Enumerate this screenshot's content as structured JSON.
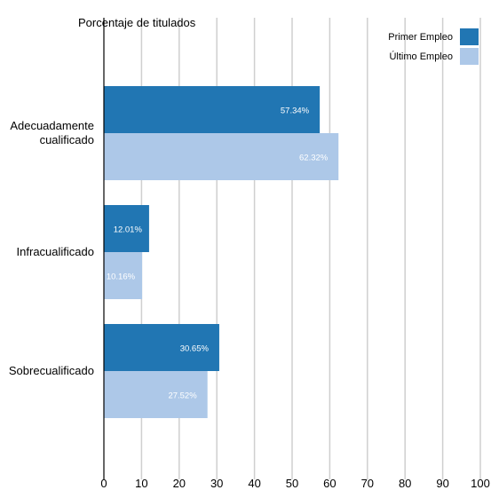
{
  "chart_data": {
    "type": "bar",
    "orientation": "horizontal",
    "title": "Porcentaje de titulados",
    "categories": [
      "Adecuadamente cualificado",
      "Infracualificado",
      "Sobrecualificado"
    ],
    "category_lines": [
      [
        "Adecuadamente",
        "cualificado"
      ],
      [
        "Infracualificado"
      ],
      [
        "Sobrecualificado"
      ]
    ],
    "series": [
      {
        "name": "Primer Empleo",
        "color": "#2176b3",
        "values": [
          57.34,
          12.01,
          30.65
        ],
        "labels": [
          "57.34%",
          "12.01%",
          "30.65%"
        ]
      },
      {
        "name": "Último Empleo",
        "color": "#adc8e8",
        "values": [
          62.32,
          10.16,
          27.52
        ],
        "labels": [
          "62.32%",
          "10.16%",
          "27.52%"
        ]
      }
    ],
    "xlim": [
      0,
      100
    ],
    "xticks": [
      0,
      10,
      20,
      30,
      40,
      50,
      60,
      70,
      80,
      90,
      100
    ],
    "grid": true,
    "legend_position": "top-right",
    "colors": {
      "grid": "#cfcfcf",
      "axis": "#000000",
      "label_on_bar": "#ffffff"
    }
  }
}
